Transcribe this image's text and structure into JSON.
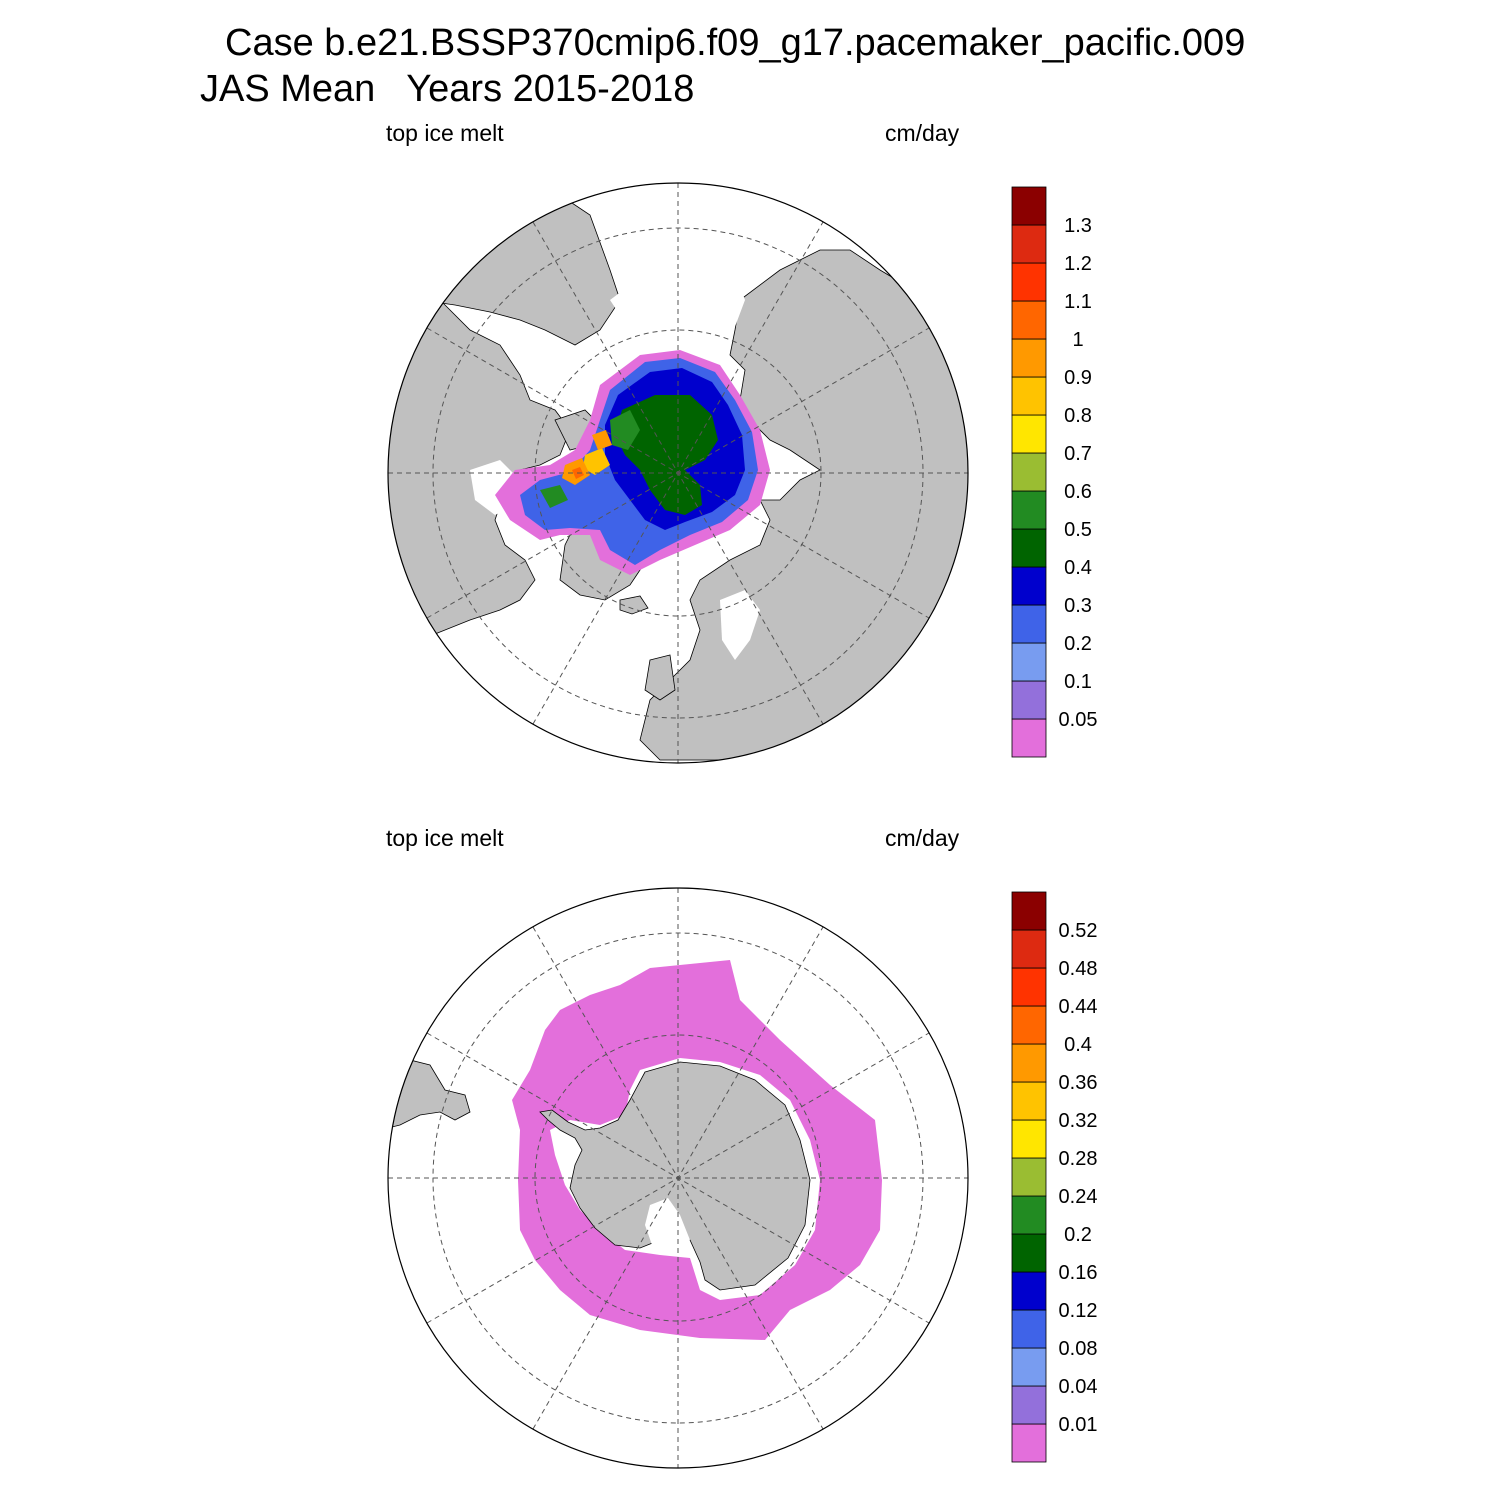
{
  "title": {
    "line1": "Case b.e21.BSSP370cmip6.f09_g17.pacemaker_pacific.009",
    "line2": "JAS Mean   Years 2015-2018"
  },
  "colors": {
    "land": "#c0c0c0",
    "ocean": "#ffffff",
    "scale": [
      "#e36fdb",
      "#9370db",
      "#789cf0",
      "#3f63e8",
      "#0000cd",
      "#006400",
      "#228b22",
      "#9abd32",
      "#ffe600",
      "#ffc300",
      "#ff9900",
      "#ff6600",
      "#ff3300",
      "#dd2a11",
      "#8b0000"
    ]
  },
  "panels": [
    {
      "id": "north",
      "left_label": "top ice melt",
      "right_label": "cm/day",
      "hemisphere": "Arctic",
      "colorbar_levels": [
        "0.05",
        "0.1",
        "0.2",
        "0.3",
        "0.4",
        "0.5",
        "0.6",
        "0.7",
        "0.8",
        "0.9",
        "1",
        "1.1",
        "1.2",
        "1.3"
      ]
    },
    {
      "id": "south",
      "left_label": "top ice melt",
      "right_label": "cm/day",
      "hemisphere": "Antarctic",
      "colorbar_levels": [
        "0.01",
        "0.04",
        "0.08",
        "0.12",
        "0.16",
        "0.2",
        "0.24",
        "0.28",
        "0.32",
        "0.36",
        "0.4",
        "0.44",
        "0.48",
        "0.52"
      ]
    }
  ]
}
